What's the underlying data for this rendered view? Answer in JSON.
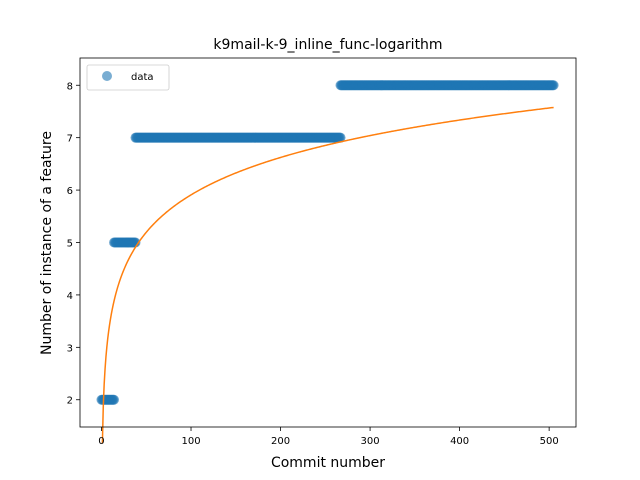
{
  "chart_data": {
    "type": "scatter",
    "title": "k9mail-k-9_inline_func-logarithm",
    "xlabel": "Commit number",
    "ylabel": "Number of instance of a feature",
    "xlim": [
      -24,
      530
    ],
    "ylim": [
      1.48,
      8.52
    ],
    "xticks": [
      0,
      100,
      200,
      300,
      400,
      500
    ],
    "yticks": [
      2,
      3,
      4,
      5,
      6,
      7,
      8
    ],
    "grid": false,
    "legend_position": "top-left",
    "series": [
      {
        "name": "data",
        "kind": "scatter",
        "color": "#1f77b4",
        "alpha": 0.6,
        "segments": [
          {
            "x_start": 0,
            "x_end": 14,
            "y": 2
          },
          {
            "x_start": 14,
            "x_end": 38,
            "y": 5
          },
          {
            "x_start": 38,
            "x_end": 267,
            "y": 7
          },
          {
            "x_start": 267,
            "x_end": 505,
            "y": 8
          }
        ]
      },
      {
        "kind": "line",
        "color": "#ff7f0e",
        "model": "logarithmic",
        "coefficients": {
          "a": 1.03,
          "b": 1.165
        },
        "x_range": [
          1,
          505
        ]
      }
    ]
  }
}
